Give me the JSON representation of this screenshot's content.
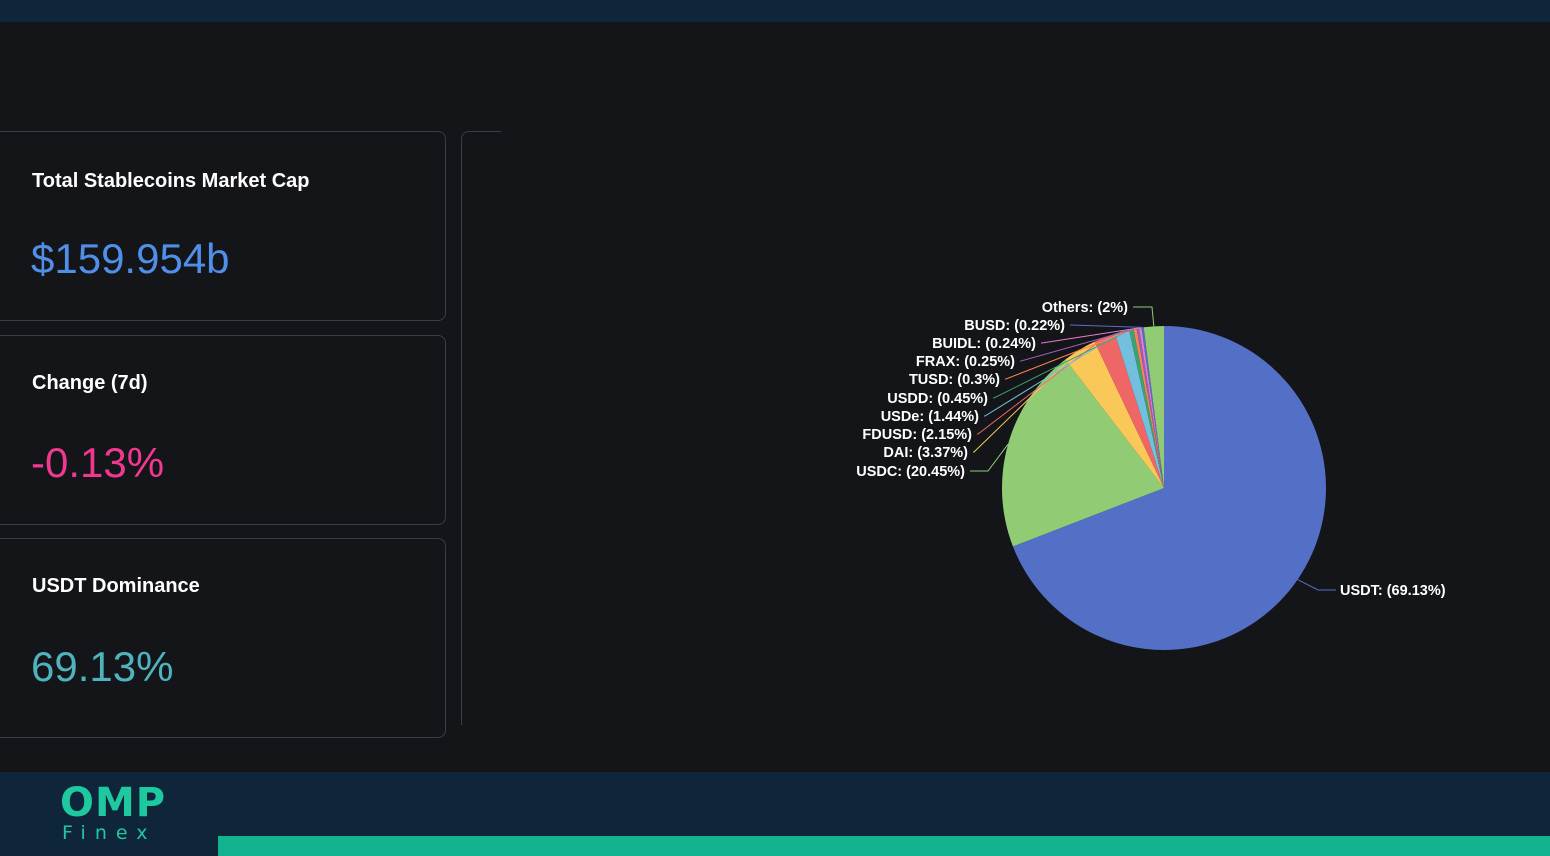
{
  "cards": [
    {
      "title": "Total Stablecoins Market Cap",
      "value": "$159.954b",
      "color": "#4f8fe8"
    },
    {
      "title": "Change (7d)",
      "value": "-0.13%",
      "color": "#f0388f"
    },
    {
      "title": "USDT Dominance",
      "value": "69.13%",
      "color": "#4fb3bf"
    }
  ],
  "chart_data": {
    "type": "pie",
    "slices": [
      {
        "label": "USDT: (69.13%)",
        "value": 69.13,
        "color": "#5470c6"
      },
      {
        "label": "USDC: (20.45%)",
        "value": 20.45,
        "color": "#91cc75"
      },
      {
        "label": "DAI: (3.37%)",
        "value": 3.37,
        "color": "#fac858"
      },
      {
        "label": "FDUSD: (2.15%)",
        "value": 2.15,
        "color": "#ee6666"
      },
      {
        "label": "USDe: (1.44%)",
        "value": 1.44,
        "color": "#73c0de"
      },
      {
        "label": "USDD: (0.45%)",
        "value": 0.45,
        "color": "#3ba272"
      },
      {
        "label": "TUSD: (0.3%)",
        "value": 0.3,
        "color": "#fc8452"
      },
      {
        "label": "FRAX: (0.25%)",
        "value": 0.25,
        "color": "#9a60b4"
      },
      {
        "label": "BUIDL: (0.24%)",
        "value": 0.24,
        "color": "#ea7ccc"
      },
      {
        "label": "BUSD: (0.22%)",
        "value": 0.22,
        "color": "#5470c6"
      },
      {
        "label": "Others: (2%)",
        "value": 2,
        "color": "#91cc75"
      }
    ]
  },
  "logo": {
    "main": "OMP",
    "sub": "Finex"
  }
}
